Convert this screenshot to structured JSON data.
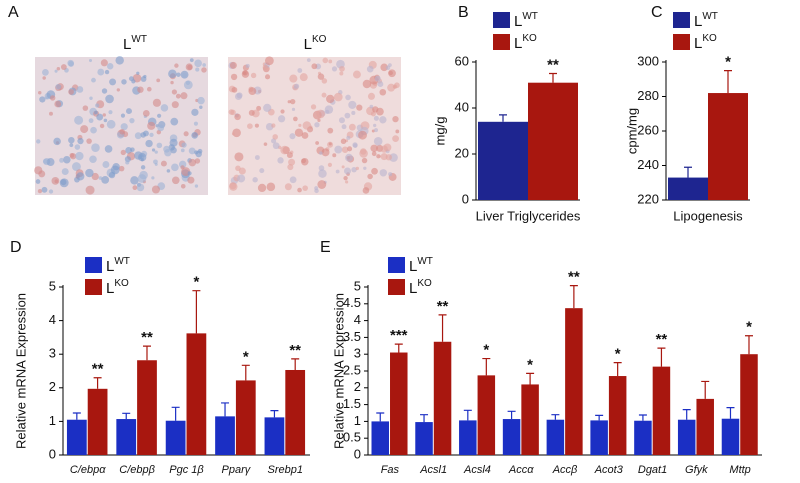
{
  "panel_a": {
    "label": "A",
    "images": [
      "LWT",
      "LKO"
    ]
  },
  "chart_data": [
    {
      "type": "bar",
      "panel_label": "B",
      "xlabel": "Liver Triglycerides",
      "ylabel": "mg/g",
      "ylim": [
        0,
        60
      ],
      "yticks": [
        0,
        20,
        40,
        60
      ],
      "series": [
        {
          "name": "LWT",
          "color": "#1e2590",
          "values": [
            34
          ],
          "errors": [
            3
          ]
        },
        {
          "name": "LKO",
          "color": "#a8170f",
          "values": [
            51
          ],
          "errors": [
            4
          ]
        }
      ],
      "annotations": [
        "**"
      ]
    },
    {
      "type": "bar",
      "panel_label": "C",
      "xlabel": "Lipogenesis",
      "ylabel": "cpm/mg",
      "ylim": [
        220,
        300
      ],
      "yticks": [
        220,
        240,
        260,
        280,
        300
      ],
      "series": [
        {
          "name": "LWT",
          "color": "#1e2590",
          "values": [
            233
          ],
          "errors": [
            6
          ]
        },
        {
          "name": "LKO",
          "color": "#a8170f",
          "values": [
            282
          ],
          "errors": [
            13
          ]
        }
      ],
      "annotations": [
        "*"
      ]
    },
    {
      "type": "bar",
      "panel_label": "D",
      "ylabel": "Relative mRNA Expression",
      "ylim": [
        0,
        5
      ],
      "yticks": [
        0,
        1,
        2,
        3,
        4,
        5
      ],
      "categories": [
        "C/ebpα",
        "C/ebpβ",
        "Pgc 1β",
        "Pparγ",
        "Srebp1"
      ],
      "series": [
        {
          "name": "LWT",
          "color": "#1b2fc4",
          "values": [
            1.05,
            1.07,
            1.02,
            1.15,
            1.12
          ],
          "errors": [
            0.2,
            0.17,
            0.4,
            0.4,
            0.2
          ]
        },
        {
          "name": "LKO",
          "color": "#a8170f",
          "values": [
            1.97,
            2.82,
            3.62,
            2.22,
            2.53
          ],
          "errors": [
            0.33,
            0.42,
            1.27,
            0.45,
            0.33
          ]
        }
      ],
      "annotations": [
        "**",
        "**",
        "*",
        "*",
        "**"
      ]
    },
    {
      "type": "bar",
      "panel_label": "E",
      "ylabel": "Relative mRNA Expression",
      "ylim": [
        0,
        5
      ],
      "yticks": [
        0,
        0.5,
        1,
        1.5,
        2,
        2.5,
        3,
        3.5,
        4,
        4.5,
        5
      ],
      "categories": [
        "Fas",
        "Acsl1",
        "Acsl4",
        "Accα",
        "Accβ",
        "Acot3",
        "Dgat1",
        "Gfyk",
        "Mttp"
      ],
      "series": [
        {
          "name": "LWT",
          "color": "#1b2fc4",
          "values": [
            1.0,
            0.98,
            1.03,
            1.07,
            1.05,
            1.03,
            1.02,
            1.05,
            1.08
          ],
          "errors": [
            0.25,
            0.22,
            0.3,
            0.23,
            0.15,
            0.15,
            0.17,
            0.3,
            0.33
          ]
        },
        {
          "name": "LKO",
          "color": "#a8170f",
          "values": [
            3.05,
            3.37,
            2.37,
            2.1,
            4.37,
            2.35,
            2.63,
            1.67,
            3.0
          ],
          "errors": [
            0.25,
            0.8,
            0.5,
            0.33,
            0.67,
            0.4,
            0.55,
            0.52,
            0.55
          ]
        }
      ],
      "annotations": [
        "***",
        "**",
        "*",
        "*",
        "**",
        "*",
        "**",
        null,
        "*"
      ]
    }
  ]
}
